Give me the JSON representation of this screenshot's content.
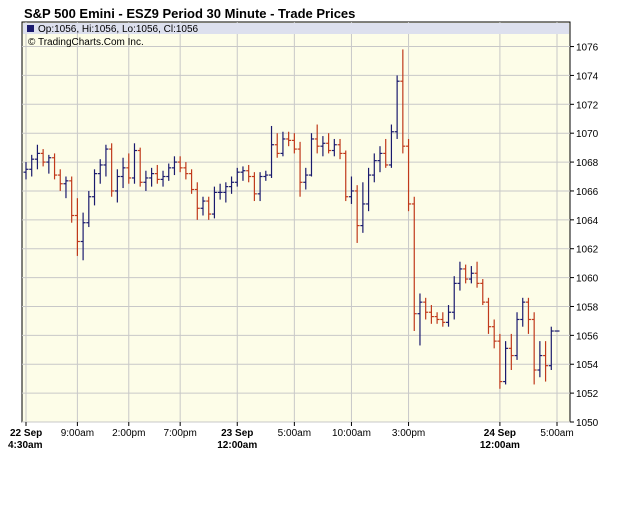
{
  "title": "S&P 500 Emini - ESZ9 Period 30 Minute - Trade Prices",
  "info_line": "Op:1056, Hi:1056, Lo:1056, Cl:1056",
  "copyright": "© TradingCharts.Com Inc.",
  "colors": {
    "up": "#1a1a6e",
    "down": "#c0391b",
    "plot_bg": "#fdfde8",
    "info_bg": "#dde0ee"
  },
  "chart_data": {
    "type": "ohlc",
    "y_ticks": [
      1050,
      1052,
      1054,
      1056,
      1058,
      1060,
      1062,
      1064,
      1066,
      1068,
      1070,
      1072,
      1074,
      1076
    ],
    "y_tick_labels": [
      "1050",
      "1052",
      "1054",
      "1056",
      "1058",
      "1060",
      "1062",
      "1064",
      "1066",
      "1068",
      "1070",
      "1072",
      "1074",
      "1076"
    ],
    "ylim": [
      1050,
      1077.7
    ],
    "x_count": 94,
    "x_ticks": [
      {
        "i": 0,
        "line1": "22 Sep",
        "line2": "4:30am"
      },
      {
        "i": 9,
        "line1": "9:00am",
        "line2": ""
      },
      {
        "i": 18,
        "line1": "2:00pm",
        "line2": ""
      },
      {
        "i": 27,
        "line1": "7:00pm",
        "line2": ""
      },
      {
        "i": 37,
        "line1": "23 Sep",
        "line2": "12:00am"
      },
      {
        "i": 47,
        "line1": "5:00am",
        "line2": ""
      },
      {
        "i": 57,
        "line1": "10:00am",
        "line2": ""
      },
      {
        "i": 67,
        "line1": "3:00pm",
        "line2": ""
      },
      {
        "i": 83,
        "line1": "24 Sep",
        "line2": "12:00am"
      },
      {
        "i": 93,
        "line1": "5:00am",
        "line2": ""
      }
    ],
    "bars": [
      [
        1067.3,
        1068.0,
        1066.8,
        1067.5
      ],
      [
        1067.5,
        1068.5,
        1067.0,
        1068.2
      ],
      [
        1068.2,
        1069.2,
        1067.5,
        1068.6
      ],
      [
        1068.6,
        1068.9,
        1067.7,
        1068.0
      ],
      [
        1068.0,
        1068.5,
        1067.2,
        1068.3
      ],
      [
        1068.3,
        1068.6,
        1066.8,
        1067.1
      ],
      [
        1067.1,
        1067.5,
        1066.0,
        1066.5
      ],
      [
        1066.5,
        1067.0,
        1065.5,
        1066.7
      ],
      [
        1066.7,
        1067.0,
        1063.8,
        1064.3
      ],
      [
        1064.3,
        1065.5,
        1061.5,
        1062.5
      ],
      [
        1062.5,
        1064.5,
        1061.2,
        1063.8
      ],
      [
        1063.8,
        1066.0,
        1063.5,
        1065.6
      ],
      [
        1065.6,
        1067.5,
        1065.0,
        1067.2
      ],
      [
        1067.2,
        1068.2,
        1066.5,
        1067.8
      ],
      [
        1067.8,
        1069.2,
        1067.0,
        1068.9
      ],
      [
        1068.9,
        1069.3,
        1065.6,
        1066.0
      ],
      [
        1066.0,
        1067.5,
        1065.2,
        1067.0
      ],
      [
        1067.0,
        1068.3,
        1066.2,
        1067.6
      ],
      [
        1067.6,
        1068.6,
        1066.5,
        1066.9
      ],
      [
        1066.9,
        1069.3,
        1066.5,
        1068.8
      ],
      [
        1068.8,
        1069.0,
        1066.3,
        1066.6
      ],
      [
        1066.6,
        1067.4,
        1066.0,
        1066.9
      ],
      [
        1066.9,
        1067.6,
        1066.3,
        1067.2
      ],
      [
        1067.2,
        1067.8,
        1066.5,
        1066.8
      ],
      [
        1066.8,
        1067.4,
        1066.3,
        1067.0
      ],
      [
        1067.0,
        1067.9,
        1066.7,
        1067.6
      ],
      [
        1067.6,
        1068.4,
        1067.1,
        1068.0
      ],
      [
        1068.0,
        1068.4,
        1067.3,
        1067.6
      ],
      [
        1067.6,
        1068.0,
        1066.8,
        1067.2
      ],
      [
        1067.2,
        1067.5,
        1065.8,
        1066.1
      ],
      [
        1066.1,
        1066.6,
        1064.0,
        1064.8
      ],
      [
        1064.8,
        1065.6,
        1064.3,
        1065.3
      ],
      [
        1065.3,
        1065.6,
        1064.0,
        1064.4
      ],
      [
        1064.4,
        1066.3,
        1064.1,
        1065.9
      ],
      [
        1065.9,
        1066.5,
        1065.4,
        1065.9
      ],
      [
        1065.9,
        1066.6,
        1065.2,
        1066.3
      ],
      [
        1066.3,
        1067.0,
        1065.8,
        1066.6
      ],
      [
        1066.6,
        1067.6,
        1066.3,
        1067.3
      ],
      [
        1067.3,
        1067.7,
        1066.7,
        1067.4
      ],
      [
        1067.4,
        1067.8,
        1066.6,
        1067.0
      ],
      [
        1067.0,
        1067.3,
        1065.3,
        1065.8
      ],
      [
        1065.8,
        1067.3,
        1065.3,
        1067.0
      ],
      [
        1067.0,
        1067.4,
        1066.7,
        1067.1
      ],
      [
        1067.1,
        1070.5,
        1066.9,
        1069.2
      ],
      [
        1069.2,
        1070.0,
        1068.3,
        1068.6
      ],
      [
        1068.6,
        1070.1,
        1068.4,
        1069.6
      ],
      [
        1069.6,
        1070.1,
        1069.1,
        1069.5
      ],
      [
        1069.5,
        1070.0,
        1068.6,
        1068.9
      ],
      [
        1068.9,
        1069.4,
        1065.6,
        1066.6
      ],
      [
        1066.6,
        1067.6,
        1066.1,
        1067.1
      ],
      [
        1067.1,
        1070.0,
        1067.0,
        1069.6
      ],
      [
        1069.6,
        1070.6,
        1068.6,
        1069.1
      ],
      [
        1069.1,
        1069.8,
        1068.4,
        1069.3
      ],
      [
        1069.3,
        1070.0,
        1068.6,
        1068.8
      ],
      [
        1068.8,
        1069.6,
        1068.4,
        1069.2
      ],
      [
        1069.2,
        1069.6,
        1068.2,
        1068.6
      ],
      [
        1068.6,
        1068.8,
        1065.3,
        1065.6
      ],
      [
        1065.6,
        1067.0,
        1065.1,
        1066.0
      ],
      [
        1066.0,
        1066.4,
        1062.4,
        1063.6
      ],
      [
        1063.6,
        1066.6,
        1063.1,
        1065.1
      ],
      [
        1065.1,
        1067.6,
        1064.6,
        1067.1
      ],
      [
        1067.1,
        1068.6,
        1066.6,
        1068.1
      ],
      [
        1068.1,
        1069.1,
        1067.3,
        1068.6
      ],
      [
        1068.6,
        1069.6,
        1067.6,
        1067.8
      ],
      [
        1067.8,
        1070.6,
        1067.6,
        1070.1
      ],
      [
        1070.1,
        1074.0,
        1069.6,
        1073.6
      ],
      [
        1073.6,
        1075.8,
        1068.6,
        1069.1
      ],
      [
        1069.1,
        1069.6,
        1064.6,
        1065.1
      ],
      [
        1065.1,
        1065.6,
        1056.3,
        1057.5
      ],
      [
        1057.5,
        1058.9,
        1055.3,
        1058.3
      ],
      [
        1058.3,
        1058.6,
        1057.1,
        1057.6
      ],
      [
        1057.6,
        1058.1,
        1056.8,
        1057.3
      ],
      [
        1057.3,
        1057.6,
        1056.8,
        1057.1
      ],
      [
        1057.1,
        1057.6,
        1056.6,
        1056.9
      ],
      [
        1056.9,
        1058.1,
        1056.6,
        1057.6
      ],
      [
        1057.6,
        1060.1,
        1057.1,
        1059.6
      ],
      [
        1059.6,
        1061.1,
        1059.1,
        1060.6
      ],
      [
        1060.6,
        1060.9,
        1059.6,
        1059.9
      ],
      [
        1059.9,
        1060.8,
        1059.6,
        1060.3
      ],
      [
        1060.3,
        1061.1,
        1059.3,
        1059.6
      ],
      [
        1059.6,
        1059.9,
        1058.1,
        1058.3
      ],
      [
        1058.3,
        1058.6,
        1056.1,
        1056.6
      ],
      [
        1056.6,
        1057.1,
        1055.1,
        1055.6
      ],
      [
        1055.6,
        1056.1,
        1052.3,
        1052.8
      ],
      [
        1052.8,
        1055.6,
        1052.6,
        1055.1
      ],
      [
        1055.1,
        1056.1,
        1053.6,
        1054.6
      ],
      [
        1054.6,
        1057.6,
        1054.3,
        1057.1
      ],
      [
        1057.1,
        1058.6,
        1056.6,
        1058.3
      ],
      [
        1058.3,
        1058.6,
        1056.1,
        1057.1
      ],
      [
        1057.1,
        1057.6,
        1052.6,
        1053.6
      ],
      [
        1053.6,
        1055.6,
        1053.1,
        1054.6
      ],
      [
        1054.6,
        1055.6,
        1052.8,
        1053.9
      ],
      [
        1053.9,
        1056.6,
        1053.6,
        1056.3
      ],
      [
        1056.3,
        1056.3,
        1056.3,
        1056.3
      ]
    ]
  }
}
